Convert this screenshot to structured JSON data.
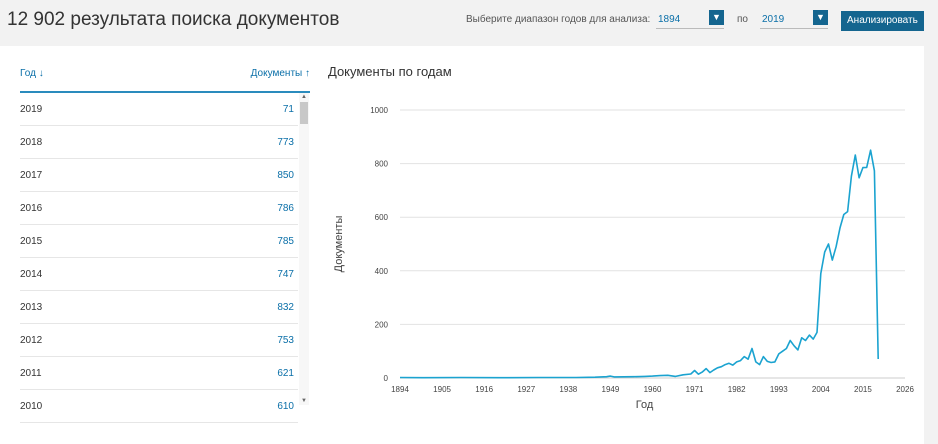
{
  "header": {
    "title": "12 902 результата поиска документов",
    "range_label": "Выберите диапазон годов для анализа:",
    "year_from": "1894",
    "to_label": "по",
    "year_to": "2019",
    "analyze_label": "Анализировать"
  },
  "table": {
    "col_year": "Год ↓",
    "col_docs": "Документы ↑",
    "rows": [
      {
        "year": "2019",
        "count": "71"
      },
      {
        "year": "2018",
        "count": "773"
      },
      {
        "year": "2017",
        "count": "850"
      },
      {
        "year": "2016",
        "count": "786"
      },
      {
        "year": "2015",
        "count": "785"
      },
      {
        "year": "2014",
        "count": "747"
      },
      {
        "year": "2013",
        "count": "832"
      },
      {
        "year": "2012",
        "count": "753"
      },
      {
        "year": "2011",
        "count": "621"
      },
      {
        "year": "2010",
        "count": "610"
      }
    ]
  },
  "colors": {
    "accent": "#14658f",
    "line": "#1ba3d0",
    "link": "#0a6fa8"
  },
  "chart_data": {
    "type": "line",
    "title": "Документы по годам",
    "xlabel": "Год",
    "ylabel": "Документы",
    "xlim": [
      1894,
      2026
    ],
    "ylim": [
      0,
      1000
    ],
    "x_ticks": [
      1894,
      1905,
      1916,
      1927,
      1938,
      1949,
      1960,
      1971,
      1982,
      1993,
      2004,
      2015,
      2026
    ],
    "y_ticks": [
      0,
      200,
      400,
      600,
      800,
      1000
    ],
    "grid": true,
    "series": [
      {
        "x": [
          1894,
          1900,
          1910,
          1920,
          1930,
          1940,
          1945,
          1948,
          1949,
          1950,
          1955,
          1958,
          1960,
          1962,
          1964,
          1966,
          1968,
          1970,
          1971,
          1972,
          1973,
          1974,
          1975,
          1976,
          1977,
          1978,
          1979,
          1980,
          1981,
          1982,
          1983,
          1984,
          1985,
          1986,
          1987,
          1988,
          1989,
          1990,
          1991,
          1992,
          1993,
          1994,
          1995,
          1996,
          1997,
          1998,
          1999,
          2000,
          2001,
          2002,
          2003,
          2004,
          2005,
          2006,
          2007,
          2008,
          2009,
          2010,
          2011,
          2012,
          2013,
          2014,
          2015,
          2016,
          2017,
          2018,
          2019
        ],
        "y": [
          2,
          1,
          2,
          1,
          2,
          2,
          3,
          5,
          7,
          4,
          5,
          6,
          7,
          9,
          10,
          6,
          12,
          15,
          28,
          14,
          22,
          35,
          20,
          30,
          38,
          42,
          50,
          55,
          48,
          60,
          65,
          80,
          70,
          110,
          60,
          50,
          80,
          62,
          58,
          60,
          90,
          100,
          110,
          140,
          120,
          105,
          150,
          140,
          160,
          145,
          170,
          390,
          470,
          500,
          440,
          490,
          560,
          610,
          621,
          753,
          832,
          747,
          785,
          786,
          850,
          773,
          71
        ]
      }
    ]
  }
}
